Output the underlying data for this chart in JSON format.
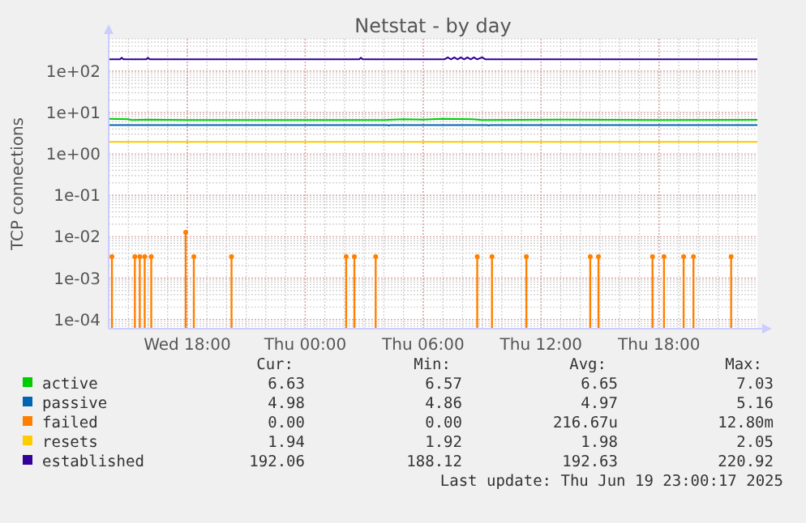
{
  "chart_data": {
    "type": "line",
    "title": "Netstat - by day",
    "ylabel": "TCP connections",
    "log": true,
    "grid": true,
    "legend": "bottom",
    "marker": "none",
    "line_style": "solid",
    "xlim": [
      "2025-06-18T14:00",
      "2025-06-19T23:00"
    ],
    "xticks": [
      {
        "value": "2025-06-18T18:00",
        "label": "Wed 18:00"
      },
      {
        "value": "2025-06-19T00:00",
        "label": "Thu 00:00"
      },
      {
        "value": "2025-06-19T06:00",
        "label": "Thu 06:00"
      },
      {
        "value": "2025-06-19T12:00",
        "label": "Thu 12:00"
      },
      {
        "value": "2025-06-19T18:00",
        "label": "Thu 18:00"
      }
    ],
    "ylim": [
      6e-05,
      600
    ],
    "yticks": [
      {
        "value": 0.0001,
        "label": "1e-04"
      },
      {
        "value": 0.001,
        "label": "1e-03"
      },
      {
        "value": 0.01,
        "label": "1e-02"
      },
      {
        "value": 0.1,
        "label": "1e-01"
      },
      {
        "value": 1,
        "label": "1e+00"
      },
      {
        "value": 10,
        "label": "1e+01"
      },
      {
        "value": 100,
        "label": "1e+02"
      }
    ],
    "series": [
      {
        "name": "active",
        "color": "#00cc00",
        "x": [
          "2025-06-18T14:00",
          "2025-06-18T15:00",
          "2025-06-18T15:10",
          "2025-06-18T16:00",
          "2025-06-18T18:00",
          "2025-06-19T00:00",
          "2025-06-19T04:00",
          "2025-06-19T05:00",
          "2025-06-19T06:00",
          "2025-06-19T07:00",
          "2025-06-19T08:30",
          "2025-06-19T09:00",
          "2025-06-19T13:00",
          "2025-06-19T18:00",
          "2025-06-19T23:00"
        ],
        "values": [
          7.0,
          6.9,
          6.6,
          6.7,
          6.6,
          6.6,
          6.6,
          6.9,
          6.7,
          7.0,
          6.9,
          6.6,
          6.7,
          6.6,
          6.63
        ]
      },
      {
        "name": "passive",
        "color": "#0066b3",
        "x": [
          "2025-06-18T14:00",
          "2025-06-19T04:10",
          "2025-06-19T04:15",
          "2025-06-19T04:20",
          "2025-06-19T09:15",
          "2025-06-19T09:20",
          "2025-06-19T09:25",
          "2025-06-19T23:00"
        ],
        "values": [
          4.98,
          4.98,
          4.86,
          4.98,
          4.98,
          4.86,
          4.98,
          4.98
        ]
      },
      {
        "name": "failed",
        "color": "#ff8000",
        "type": "lollipop",
        "marker": "circle",
        "x": [
          "2025-06-18T14:10",
          "2025-06-18T15:20",
          "2025-06-18T15:35",
          "2025-06-18T15:50",
          "2025-06-18T16:10",
          "2025-06-18T17:55",
          "2025-06-18T18:20",
          "2025-06-18T20:15",
          "2025-06-19T02:05",
          "2025-06-19T02:30",
          "2025-06-19T03:35",
          "2025-06-19T08:45",
          "2025-06-19T09:30",
          "2025-06-19T11:15",
          "2025-06-19T14:30",
          "2025-06-19T14:55",
          "2025-06-19T17:40",
          "2025-06-19T18:15",
          "2025-06-19T19:15",
          "2025-06-19T19:45",
          "2025-06-19T21:40"
        ],
        "values": [
          0.0033,
          0.0033,
          0.0033,
          0.0033,
          0.0033,
          0.0128,
          0.0033,
          0.0033,
          0.0033,
          0.0033,
          0.0033,
          0.0033,
          0.0033,
          0.0033,
          0.0033,
          0.0033,
          0.0033,
          0.0033,
          0.0033,
          0.0033,
          0.0033
        ]
      },
      {
        "name": "resets",
        "color": "#ffcc00",
        "x": [
          "2025-06-18T14:00",
          "2025-06-19T23:00"
        ],
        "values": [
          1.94,
          1.94
        ]
      },
      {
        "name": "established",
        "color": "#330099",
        "x": [
          "2025-06-18T14:00",
          "2025-06-18T14:35",
          "2025-06-18T14:40",
          "2025-06-18T14:45",
          "2025-06-18T15:55",
          "2025-06-18T16:00",
          "2025-06-18T16:05",
          "2025-06-19T02:45",
          "2025-06-19T02:50",
          "2025-06-19T02:55",
          "2025-06-19T07:05",
          "2025-06-19T07:15",
          "2025-06-19T07:25",
          "2025-06-19T07:35",
          "2025-06-19T07:45",
          "2025-06-19T07:55",
          "2025-06-19T08:05",
          "2025-06-19T08:15",
          "2025-06-19T08:25",
          "2025-06-19T08:35",
          "2025-06-19T08:45",
          "2025-06-19T09:00",
          "2025-06-19T09:10",
          "2025-06-19T23:00"
        ],
        "values": [
          192,
          192,
          210,
          192,
          192,
          210,
          192,
          192,
          210,
          192,
          192,
          215,
          192,
          215,
          192,
          215,
          192,
          215,
          192,
          215,
          192,
          215,
          192,
          192.06
        ]
      }
    ],
    "annotations": [
      "Cur:",
      "Min:",
      "Avg:",
      "Max:",
      "6.63",
      "6.57",
      "6.65",
      "7.03",
      "4.98",
      "4.86",
      "4.97",
      "5.16",
      "0.00",
      "0.00",
      "216.67u",
      "12.80m",
      "1.94",
      "1.92",
      "1.98",
      "2.05",
      "192.06",
      "188.12",
      "192.63",
      "220.92",
      "Last update: Thu Jun 19 23:00:17 2025"
    ]
  }
}
